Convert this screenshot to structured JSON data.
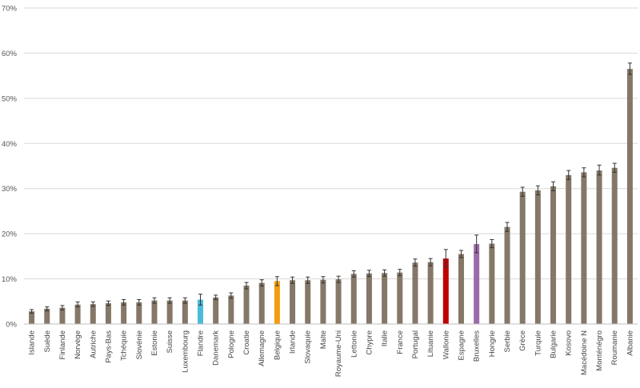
{
  "chart_data": {
    "type": "bar",
    "title": "",
    "xlabel": "",
    "ylabel": "",
    "ylim": [
      0,
      70
    ],
    "y_ticks": [
      0,
      10,
      20,
      30,
      40,
      50,
      60,
      70
    ],
    "y_tick_labels": [
      "0%",
      "10%",
      "20%",
      "30%",
      "40%",
      "50%",
      "60%",
      "70%"
    ],
    "grid": true,
    "legend": "none",
    "default_color": "#857868",
    "categories": [
      "Islande",
      "Suède",
      "Finlande",
      "Norvège",
      "Autriche",
      "Pays-Bas",
      "Tchéquie",
      "Slovénie",
      "Estonie",
      "Suisse",
      "Luxembourg",
      "Flandre",
      "Danemark",
      "Pologne",
      "Croatie",
      "Allemagne",
      "Belgique",
      "Irlande",
      "Slovaquie",
      "Malte",
      "Royaume-Uni",
      "Lettonie",
      "Chypre",
      "Italie",
      "France",
      "Portugal",
      "Lituanie",
      "Wallonie",
      "Espagne",
      "Bruxelles",
      "Hongrie",
      "Serbie",
      "Grèce",
      "Turquie",
      "Bulgarie",
      "Kosovo",
      "Macédoine N",
      "Monténégro",
      "Roumanie",
      "Albanie"
    ],
    "values": [
      2.8,
      3.4,
      3.6,
      4.3,
      4.4,
      4.6,
      4.8,
      4.8,
      5.2,
      5.2,
      5.2,
      5.4,
      5.9,
      6.3,
      8.5,
      9.1,
      9.5,
      9.7,
      9.7,
      9.8,
      9.9,
      11.1,
      11.2,
      11.3,
      11.4,
      13.6,
      13.7,
      14.5,
      15.5,
      17.7,
      17.8,
      21.5,
      29.3,
      29.6,
      30.5,
      33.0,
      33.6,
      34.0,
      34.6,
      56.5
    ],
    "error_low": [
      2.4,
      2.9,
      3.1,
      3.8,
      3.9,
      4.1,
      4.2,
      4.2,
      4.6,
      4.6,
      4.6,
      4.2,
      5.4,
      5.7,
      7.8,
      8.4,
      8.5,
      9.0,
      9.0,
      9.1,
      9.2,
      10.4,
      10.5,
      10.6,
      10.7,
      12.8,
      12.9,
      12.6,
      14.7,
      15.8,
      16.9,
      20.5,
      28.3,
      28.6,
      29.5,
      32.0,
      32.6,
      33.0,
      33.6,
      55.3
    ],
    "error_high": [
      3.2,
      3.8,
      4.1,
      4.9,
      4.9,
      5.1,
      5.4,
      5.4,
      5.8,
      5.8,
      5.8,
      6.6,
      6.4,
      6.9,
      9.2,
      9.8,
      10.5,
      10.4,
      10.4,
      10.5,
      10.6,
      11.8,
      11.9,
      12.0,
      12.1,
      14.4,
      14.5,
      16.5,
      16.3,
      19.7,
      18.7,
      22.5,
      30.3,
      30.6,
      31.5,
      34.0,
      34.6,
      35.2,
      35.6,
      57.8
    ],
    "highlights": {
      "Flandre": "#4bbcd8",
      "Belgique": "#f39c12",
      "Wallonie": "#c00000",
      "Bruxelles": "#9b6aa8"
    }
  }
}
